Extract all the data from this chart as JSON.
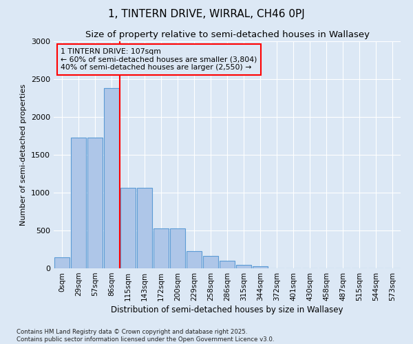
{
  "title1": "1, TINTERN DRIVE, WIRRAL, CH46 0PJ",
  "title2": "Size of property relative to semi-detached houses in Wallasey",
  "xlabel": "Distribution of semi-detached houses by size in Wallasey",
  "ylabel": "Number of semi-detached properties",
  "footnote": "Contains HM Land Registry data © Crown copyright and database right 2025.\nContains public sector information licensed under the Open Government Licence v3.0.",
  "bar_labels": [
    "0sqm",
    "29sqm",
    "57sqm",
    "86sqm",
    "115sqm",
    "143sqm",
    "172sqm",
    "200sqm",
    "229sqm",
    "258sqm",
    "286sqm",
    "315sqm",
    "344sqm",
    "372sqm",
    "401sqm",
    "430sqm",
    "458sqm",
    "487sqm",
    "515sqm",
    "544sqm",
    "573sqm"
  ],
  "bar_values": [
    150,
    1730,
    1730,
    2380,
    1060,
    1060,
    530,
    530,
    230,
    160,
    100,
    50,
    30,
    0,
    0,
    0,
    0,
    0,
    0,
    0,
    0
  ],
  "bar_color": "#aec6e8",
  "bar_edge_color": "#5b9bd5",
  "vline_color": "red",
  "annotation_text": "1 TINTERN DRIVE: 107sqm\n← 60% of semi-detached houses are smaller (3,804)\n40% of semi-detached houses are larger (2,550) →",
  "annotation_box_color": "red",
  "ylim": [
    0,
    3000
  ],
  "yticks": [
    0,
    500,
    1000,
    1500,
    2000,
    2500,
    3000
  ],
  "background_color": "#dce8f5",
  "title1_fontsize": 11,
  "title2_fontsize": 9.5
}
